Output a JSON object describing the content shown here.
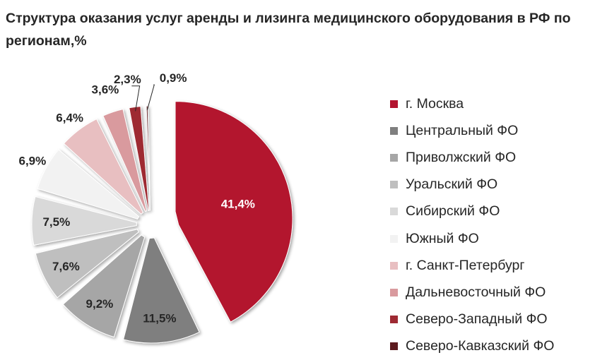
{
  "chart_data": {
    "type": "pie",
    "title": "Структура оказания услуг аренды и лизинга медицинского оборудования в РФ по регионам,%",
    "slices": [
      {
        "name": "г. Москва",
        "value": 41.4,
        "label": "41,4%",
        "color": "#b3142f"
      },
      {
        "name": "Центральный ФО",
        "value": 11.5,
        "label": "11,5%",
        "color": "#7f7f7f"
      },
      {
        "name": "Приволжский ФО",
        "value": 9.2,
        "label": "9,2%",
        "color": "#a6a6a6"
      },
      {
        "name": "Уральский ФО",
        "value": 7.6,
        "label": "7,6%",
        "color": "#bfbfbf"
      },
      {
        "name": "Сибирский ФО",
        "value": 7.5,
        "label": "7,5%",
        "color": "#d9d9d9"
      },
      {
        "name": "Южный ФО",
        "value": 6.9,
        "label": "6,9%",
        "color": "#f2f2f2"
      },
      {
        "name": "г. Санкт-Петербург",
        "value": 6.4,
        "label": "6,4%",
        "color": "#e8bfc1"
      },
      {
        "name": "Дальневосточный ФО",
        "value": 3.6,
        "label": "3,6%",
        "color": "#d99a9e"
      },
      {
        "name": "Северо-Западный ФО",
        "value": 2.3,
        "label": "2,3%",
        "color": "#9e2a33"
      },
      {
        "name": "Северо-Кавказский ФО",
        "value": 0.9,
        "label": "0,9%",
        "color": "#5c1a1f"
      }
    ],
    "legend_position": "right"
  }
}
